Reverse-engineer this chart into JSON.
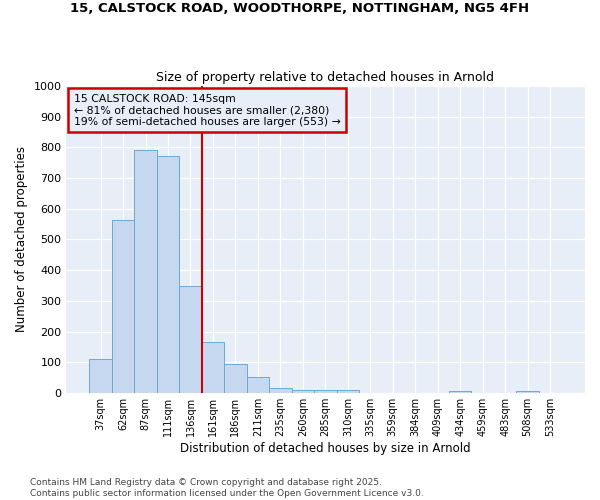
{
  "title1": "15, CALSTOCK ROAD, WOODTHORPE, NOTTINGHAM, NG5 4FH",
  "title2": "Size of property relative to detached houses in Arnold",
  "xlabel": "Distribution of detached houses by size in Arnold",
  "ylabel": "Number of detached properties",
  "categories": [
    "37sqm",
    "62sqm",
    "87sqm",
    "111sqm",
    "136sqm",
    "161sqm",
    "186sqm",
    "211sqm",
    "235sqm",
    "260sqm",
    "285sqm",
    "310sqm",
    "335sqm",
    "359sqm",
    "384sqm",
    "409sqm",
    "434sqm",
    "459sqm",
    "483sqm",
    "508sqm",
    "533sqm"
  ],
  "values": [
    112,
    565,
    793,
    773,
    350,
    165,
    95,
    52,
    15,
    11,
    10,
    8,
    0,
    0,
    0,
    0,
    7,
    0,
    0,
    7,
    0
  ],
  "bar_color": "#c5d8f0",
  "bar_edge_color": "#6aaad4",
  "background_color": "#ffffff",
  "plot_bg_color": "#e8eef8",
  "grid_color": "#ffffff",
  "annotation_box_color": "#cc0000",
  "vline_color": "#cc0000",
  "vline_x": 4.5,
  "annotation_text": "15 CALSTOCK ROAD: 145sqm\n← 81% of detached houses are smaller (2,380)\n19% of semi-detached houses are larger (553) →",
  "footer": "Contains HM Land Registry data © Crown copyright and database right 2025.\nContains public sector information licensed under the Open Government Licence v3.0.",
  "ylim": [
    0,
    1000
  ],
  "yticks": [
    0,
    100,
    200,
    300,
    400,
    500,
    600,
    700,
    800,
    900,
    1000
  ]
}
